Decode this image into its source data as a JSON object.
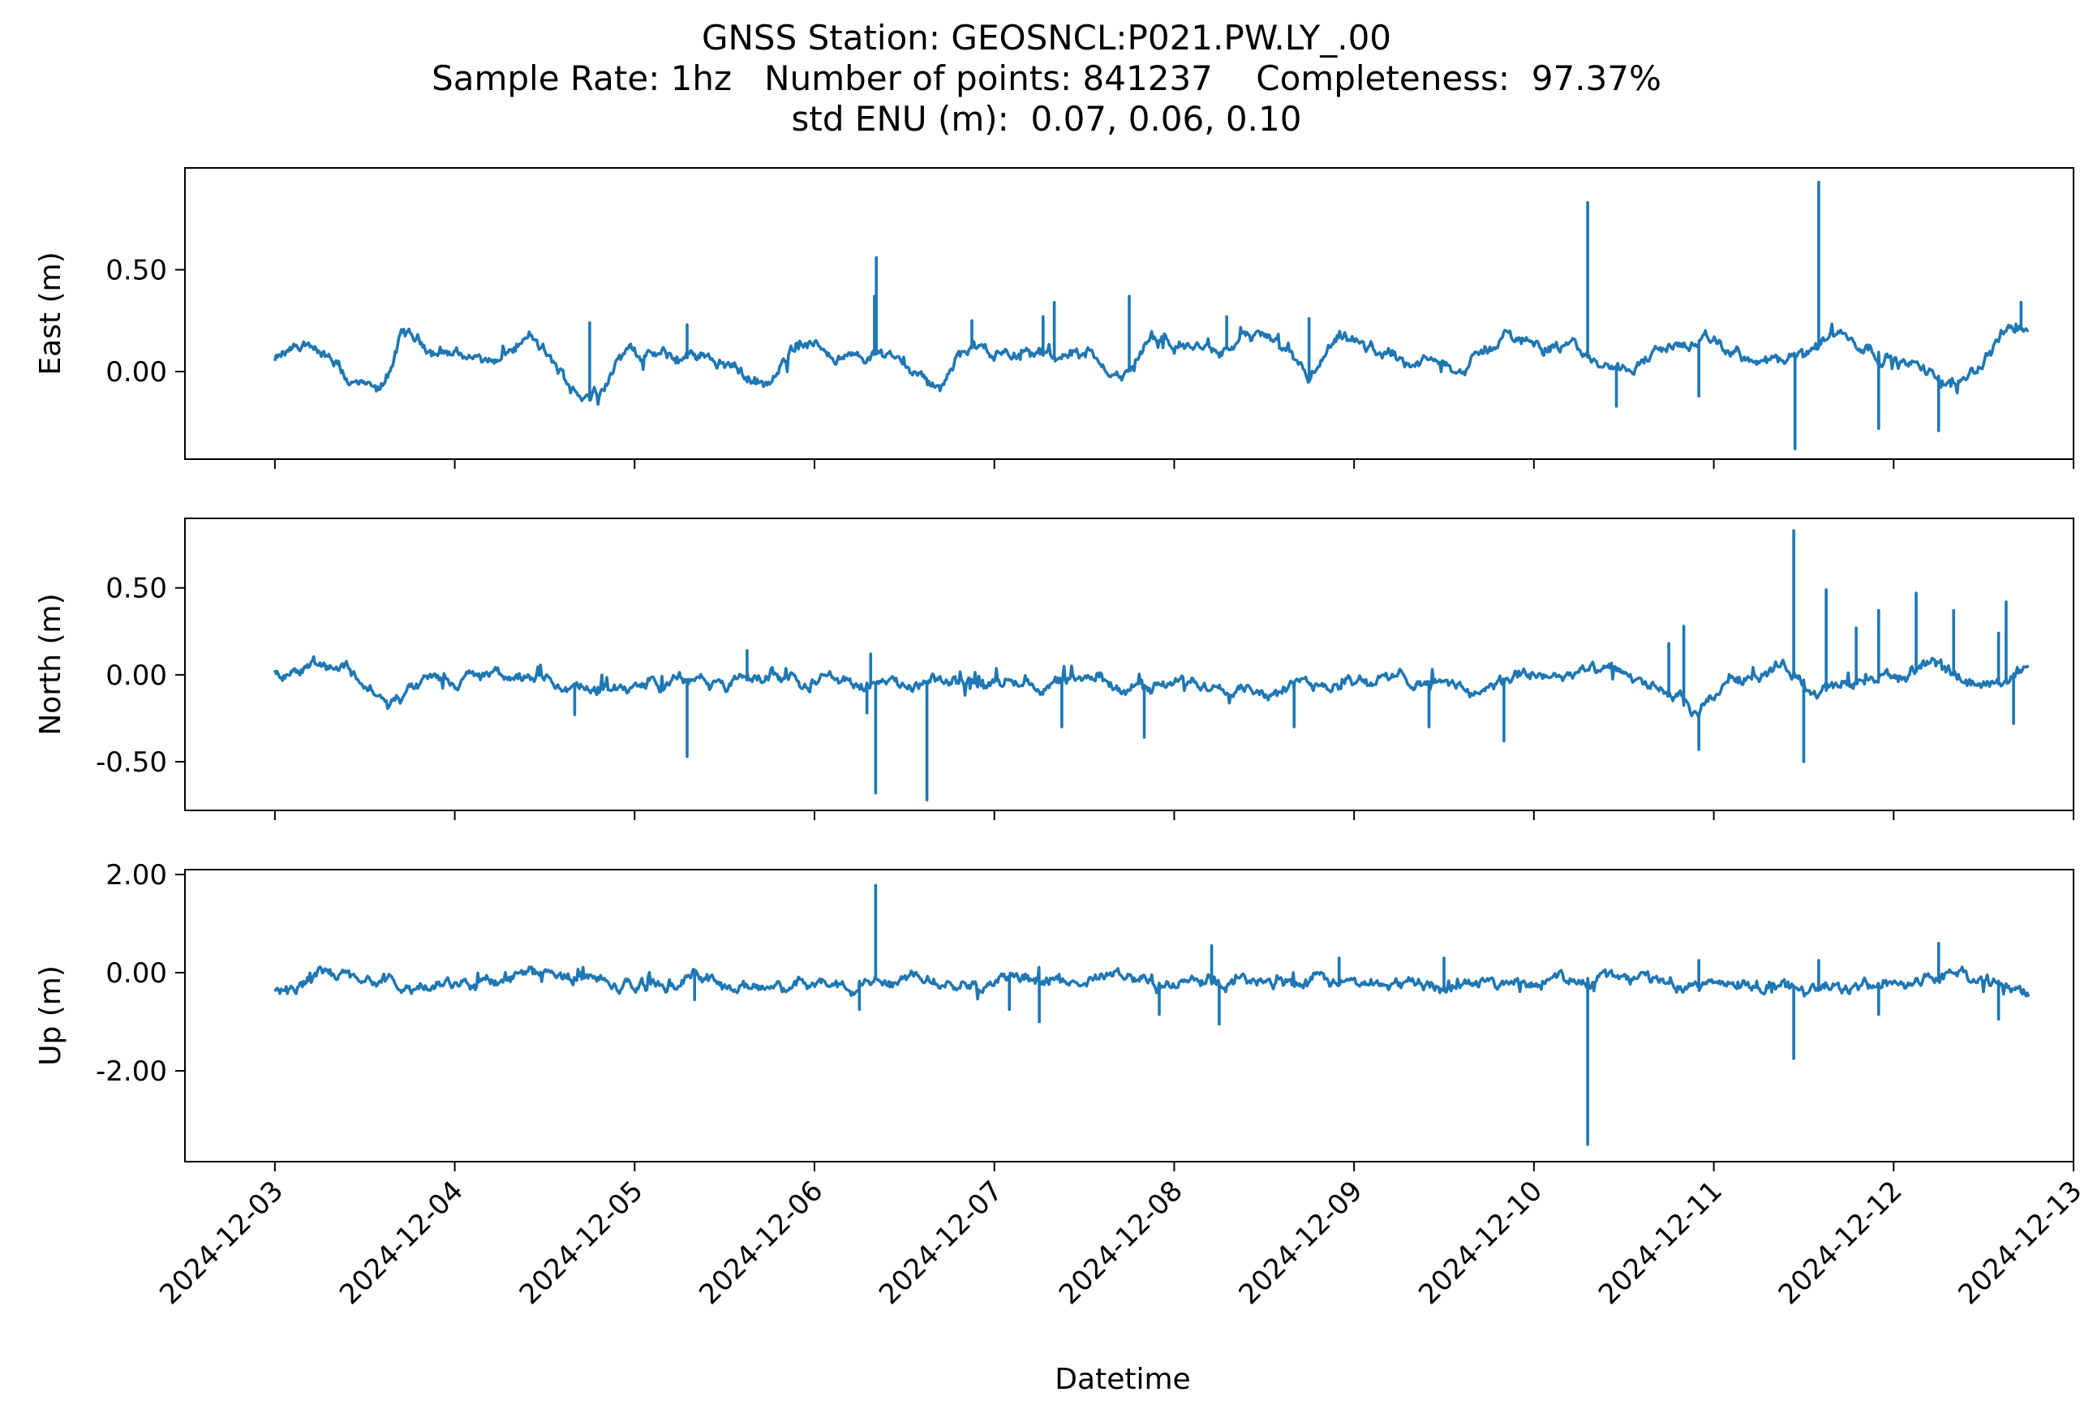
{
  "title_lines": [
    "GNSS Station: GEOSNCL:P021.PW.LY_.00",
    "Sample Rate: 1hz   Number of points: 841237    Completeness:  97.37%",
    "std ENU (m):  0.07, 0.06, 0.10"
  ],
  "chart_data": {
    "type": "line",
    "xlabel": "Datetime",
    "line_color": "#1f77b4",
    "x_range": [
      "2024-12-02T12:00",
      "2024-12-13T00:00"
    ],
    "x_data_range": [
      "2024-12-03T00:00",
      "2024-12-12T18:00"
    ],
    "x_ticks": [
      "2024-12-03",
      "2024-12-04",
      "2024-12-05",
      "2024-12-06",
      "2024-12-07",
      "2024-12-08",
      "2024-12-09",
      "2024-12-10",
      "2024-12-11",
      "2024-12-12",
      "2024-12-13"
    ],
    "grid": false,
    "panels": [
      {
        "name": "East (m)",
        "ylabel": "East (m)",
        "ylim": [
          -0.43,
          1.0
        ],
        "y_ticks": [
          0.0,
          0.5
        ],
        "y_tick_labels": [
          "0.00",
          "0.50"
        ],
        "anchors": [
          [
            "2024-12-03T00:00",
            0.05
          ],
          [
            "2024-12-03T05:00",
            0.14
          ],
          [
            "2024-12-03T10:00",
            -0.05
          ],
          [
            "2024-12-03T14:00",
            -0.12
          ],
          [
            "2024-12-03T17:00",
            0.18
          ],
          [
            "2024-12-03T22:00",
            0.1
          ],
          [
            "2024-12-04T06:00",
            0.06
          ],
          [
            "2024-12-04T10:00",
            0.17
          ],
          [
            "2024-12-04T15:00",
            -0.05
          ],
          [
            "2024-12-04T18:00",
            -0.14
          ],
          [
            "2024-12-04T23:00",
            0.1
          ],
          [
            "2024-12-05T06:00",
            0.06
          ],
          [
            "2024-12-05T10:00",
            0.09
          ],
          [
            "2024-12-05T18:00",
            -0.08
          ],
          [
            "2024-12-05T22:00",
            0.15
          ],
          [
            "2024-12-06T05:00",
            0.06
          ],
          [
            "2024-12-06T10:00",
            0.1
          ],
          [
            "2024-12-06T14:00",
            0.0
          ],
          [
            "2024-12-06T17:00",
            -0.08
          ],
          [
            "2024-12-06T20:00",
            0.12
          ],
          [
            "2024-12-07T06:00",
            0.08
          ],
          [
            "2024-12-07T13:00",
            0.08
          ],
          [
            "2024-12-07T17:00",
            -0.04
          ],
          [
            "2024-12-07T21:00",
            0.15
          ],
          [
            "2024-12-08T06:00",
            0.1
          ],
          [
            "2024-12-08T12:00",
            0.18
          ],
          [
            "2024-12-08T18:00",
            -0.05
          ],
          [
            "2024-12-08T22:00",
            0.15
          ],
          [
            "2024-12-09T08:00",
            0.05
          ],
          [
            "2024-12-09T15:00",
            0.02
          ],
          [
            "2024-12-09T20:00",
            0.18
          ],
          [
            "2024-12-10T06:00",
            0.1
          ],
          [
            "2024-12-10T08:00",
            0.05
          ],
          [
            "2024-12-10T12:00",
            0.02
          ],
          [
            "2024-12-10T18:00",
            0.12
          ],
          [
            "2024-12-11T00:00",
            0.14
          ],
          [
            "2024-12-11T06:00",
            0.04
          ],
          [
            "2024-12-11T12:00",
            0.06
          ],
          [
            "2024-12-11T16:00",
            0.2
          ],
          [
            "2024-12-12T00:00",
            0.06
          ],
          [
            "2024-12-12T08:00",
            -0.05
          ],
          [
            "2024-12-12T12:00",
            0.05
          ],
          [
            "2024-12-12T15:00",
            0.22
          ],
          [
            "2024-12-12T18:00",
            0.22
          ]
        ],
        "spikes": [
          [
            "2024-12-06T08:00",
            0.37
          ],
          [
            "2024-12-06T08:15",
            0.56
          ],
          [
            "2024-12-06T21:00",
            0.25
          ],
          [
            "2024-12-07T06:30",
            0.27
          ],
          [
            "2024-12-07T08:00",
            0.34
          ],
          [
            "2024-12-07T18:00",
            0.37
          ],
          [
            "2024-12-08T07:00",
            0.27
          ],
          [
            "2024-12-08T18:00",
            0.26
          ],
          [
            "2024-12-10T07:10",
            0.83
          ],
          [
            "2024-12-10T11:00",
            -0.17
          ],
          [
            "2024-12-10T22:00",
            -0.12
          ],
          [
            "2024-12-11T10:50",
            -0.38
          ],
          [
            "2024-12-11T14:00",
            0.93
          ],
          [
            "2024-12-11T22:00",
            -0.28
          ],
          [
            "2024-12-12T06:00",
            -0.29
          ],
          [
            "2024-12-12T17:00",
            0.34
          ],
          [
            "2024-12-05T07:00",
            0.23
          ],
          [
            "2024-12-04T18:00",
            0.24
          ]
        ]
      },
      {
        "name": "North (m)",
        "ylabel": "North (m)",
        "ylim": [
          -0.78,
          0.9
        ],
        "y_ticks": [
          0.5,
          0.0,
          -0.5
        ],
        "y_tick_labels": [
          "0.50",
          "0.00",
          "-0.50"
        ],
        "anchors": [
          [
            "2024-12-03T00:00",
            0.0
          ],
          [
            "2024-12-03T05:00",
            0.08
          ],
          [
            "2024-12-03T10:00",
            0.04
          ],
          [
            "2024-12-03T15:00",
            -0.18
          ],
          [
            "2024-12-03T20:00",
            -0.05
          ],
          [
            "2024-12-04T06:00",
            0.0
          ],
          [
            "2024-12-04T12:00",
            -0.05
          ],
          [
            "2024-12-04T18:00",
            -0.1
          ],
          [
            "2024-12-05T06:00",
            -0.02
          ],
          [
            "2024-12-05T12:00",
            -0.06
          ],
          [
            "2024-12-05T18:00",
            0.0
          ],
          [
            "2024-12-06T06:00",
            -0.04
          ],
          [
            "2024-12-06T12:00",
            -0.08
          ],
          [
            "2024-12-06T18:00",
            -0.04
          ],
          [
            "2024-12-07T06:00",
            -0.06
          ],
          [
            "2024-12-07T12:00",
            -0.04
          ],
          [
            "2024-12-07T20:00",
            -0.06
          ],
          [
            "2024-12-08T06:00",
            -0.04
          ],
          [
            "2024-12-08T14:00",
            -0.1
          ],
          [
            "2024-12-08T20:00",
            -0.04
          ],
          [
            "2024-12-09T08:00",
            -0.02
          ],
          [
            "2024-12-09T16:00",
            -0.1
          ],
          [
            "2024-12-10T00:00",
            0.0
          ],
          [
            "2024-12-10T10:00",
            0.02
          ],
          [
            "2024-12-10T18:00",
            -0.1
          ],
          [
            "2024-12-10T22:00",
            -0.25
          ],
          [
            "2024-12-11T02:00",
            -0.02
          ],
          [
            "2024-12-11T10:00",
            0.04
          ],
          [
            "2024-12-11T14:00",
            -0.1
          ],
          [
            "2024-12-11T22:00",
            -0.02
          ],
          [
            "2024-12-12T06:00",
            0.04
          ],
          [
            "2024-12-12T12:00",
            -0.08
          ],
          [
            "2024-12-12T18:00",
            0.05
          ]
        ],
        "spikes": [
          [
            "2024-12-04T16:00",
            -0.23
          ],
          [
            "2024-12-05T07:00",
            -0.47
          ],
          [
            "2024-12-05T15:00",
            0.14
          ],
          [
            "2024-12-06T07:00",
            -0.22
          ],
          [
            "2024-12-06T07:30",
            0.12
          ],
          [
            "2024-12-06T08:10",
            -0.68
          ],
          [
            "2024-12-06T15:00",
            -0.72
          ],
          [
            "2024-12-07T09:00",
            -0.3
          ],
          [
            "2024-12-07T20:00",
            -0.36
          ],
          [
            "2024-12-08T16:00",
            -0.3
          ],
          [
            "2024-12-09T10:00",
            -0.3
          ],
          [
            "2024-12-09T20:00",
            -0.38
          ],
          [
            "2024-12-10T18:00",
            0.18
          ],
          [
            "2024-12-10T20:00",
            0.28
          ],
          [
            "2024-12-10T22:00",
            -0.43
          ],
          [
            "2024-12-11T10:40",
            0.83
          ],
          [
            "2024-12-11T12:00",
            -0.5
          ],
          [
            "2024-12-11T15:00",
            0.49
          ],
          [
            "2024-12-11T19:00",
            0.27
          ],
          [
            "2024-12-11T22:00",
            0.37
          ],
          [
            "2024-12-12T03:00",
            0.47
          ],
          [
            "2024-12-12T08:00",
            0.37
          ],
          [
            "2024-12-12T14:00",
            0.24
          ],
          [
            "2024-12-12T15:00",
            0.42
          ],
          [
            "2024-12-12T16:00",
            -0.28
          ]
        ]
      },
      {
        "name": "Up (m)",
        "ylabel": "Up (m)",
        "ylim": [
          -3.85,
          2.1
        ],
        "y_ticks": [
          2.0,
          0.0,
          -2.0
        ],
        "y_tick_labels": [
          "2.00",
          "0.00",
          "-2.00"
        ],
        "anchors": [
          [
            "2024-12-03T00:00",
            -0.3
          ],
          [
            "2024-12-03T06:00",
            -0.05
          ],
          [
            "2024-12-03T12:00",
            -0.15
          ],
          [
            "2024-12-03T18:00",
            -0.38
          ],
          [
            "2024-12-04T06:00",
            -0.15
          ],
          [
            "2024-12-04T10:00",
            0.02
          ],
          [
            "2024-12-04T18:00",
            -0.15
          ],
          [
            "2024-12-05T00:00",
            -0.3
          ],
          [
            "2024-12-05T08:00",
            -0.1
          ],
          [
            "2024-12-05T16:00",
            -0.3
          ],
          [
            "2024-12-06T02:00",
            -0.3
          ],
          [
            "2024-12-06T10:00",
            -0.05
          ],
          [
            "2024-12-06T20:00",
            -0.15
          ],
          [
            "2024-12-07T08:00",
            -0.18
          ],
          [
            "2024-12-07T16:00",
            -0.1
          ],
          [
            "2024-12-08T00:00",
            -0.25
          ],
          [
            "2024-12-08T12:00",
            -0.2
          ],
          [
            "2024-12-09T00:00",
            -0.2
          ],
          [
            "2024-12-09T12:00",
            -0.25
          ],
          [
            "2024-12-10T00:00",
            -0.15
          ],
          [
            "2024-12-10T10:00",
            -0.1
          ],
          [
            "2024-12-10T20:00",
            -0.2
          ],
          [
            "2024-12-11T06:00",
            -0.25
          ],
          [
            "2024-12-11T16:00",
            -0.3
          ],
          [
            "2024-12-12T02:00",
            -0.2
          ],
          [
            "2024-12-12T08:00",
            -0.05
          ],
          [
            "2024-12-12T14:00",
            -0.3
          ],
          [
            "2024-12-12T18:00",
            -0.5
          ]
        ],
        "spikes": [
          [
            "2024-12-05T08:00",
            -0.55
          ],
          [
            "2024-12-06T08:10",
            1.78
          ],
          [
            "2024-12-06T06:00",
            -0.75
          ],
          [
            "2024-12-07T02:00",
            -0.75
          ],
          [
            "2024-12-07T06:00",
            -1.0
          ],
          [
            "2024-12-07T22:00",
            -0.85
          ],
          [
            "2024-12-08T05:00",
            0.55
          ],
          [
            "2024-12-08T06:00",
            -1.05
          ],
          [
            "2024-12-08T22:00",
            0.3
          ],
          [
            "2024-12-09T12:00",
            0.3
          ],
          [
            "2024-12-10T07:10",
            -3.5
          ],
          [
            "2024-12-10T22:00",
            0.25
          ],
          [
            "2024-12-11T10:40",
            -1.75
          ],
          [
            "2024-12-11T14:00",
            0.25
          ],
          [
            "2024-12-11T22:00",
            -0.85
          ],
          [
            "2024-12-12T06:00",
            0.6
          ],
          [
            "2024-12-12T14:00",
            -0.95
          ]
        ]
      }
    ]
  }
}
